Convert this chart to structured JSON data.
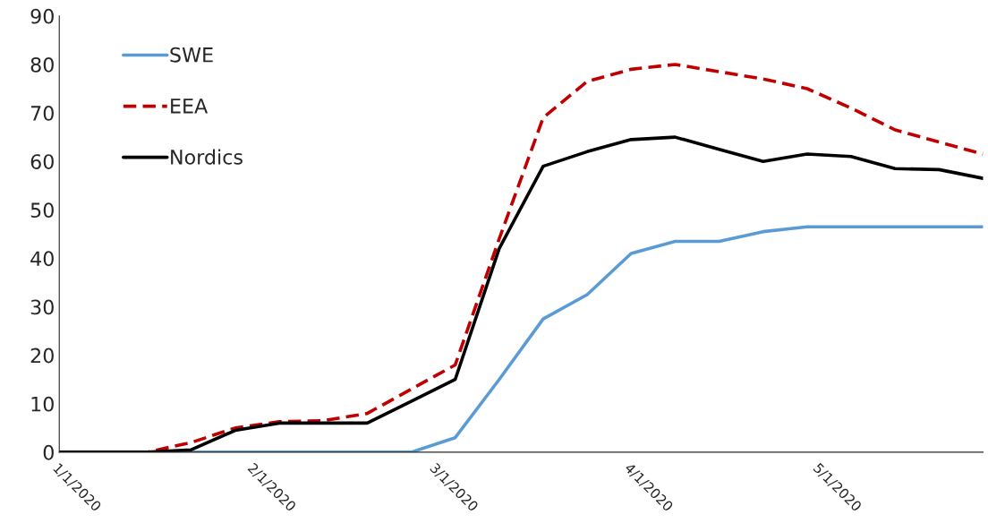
{
  "chart_data": {
    "type": "line",
    "x": [
      "2020-01-01",
      "2020-01-08",
      "2020-01-15",
      "2020-01-22",
      "2020-01-29",
      "2020-02-05",
      "2020-02-12",
      "2020-02-19",
      "2020-02-26",
      "2020-03-04",
      "2020-03-11",
      "2020-03-18",
      "2020-03-25",
      "2020-04-01",
      "2020-04-08",
      "2020-04-15",
      "2020-04-22",
      "2020-04-29",
      "2020-05-06",
      "2020-05-13",
      "2020-05-20",
      "2020-05-27"
    ],
    "series": [
      {
        "name": "SWE",
        "color": "#5b9bd5",
        "line_style": "solid",
        "values": [
          null,
          null,
          0,
          0,
          0,
          0,
          0,
          0,
          0,
          3,
          15,
          27.5,
          32.5,
          41,
          43.5,
          43.5,
          45.5,
          46.5,
          46.5,
          46.5,
          46.5,
          46.5
        ]
      },
      {
        "name": "EEA",
        "color": "#c00000",
        "line_style": "dashed",
        "values": [
          0,
          0,
          0,
          2,
          5,
          6.3,
          6.5,
          8,
          13,
          18,
          44,
          69,
          76.5,
          79,
          80,
          78.5,
          77,
          75,
          71,
          66.5,
          64,
          61.5
        ]
      },
      {
        "name": "Nordics",
        "color": "#000000",
        "line_style": "solid",
        "values": [
          0,
          0,
          0,
          0.5,
          4.5,
          6,
          6,
          6,
          10.5,
          15,
          42,
          59,
          62,
          64.5,
          65,
          62.5,
          60,
          61.5,
          61,
          58.5,
          58.3,
          56.5
        ]
      }
    ],
    "xlim": [
      "2020-01-01",
      "2020-05-27"
    ],
    "xticks": [
      {
        "value": "2020-01-01",
        "label": "1/1/2020"
      },
      {
        "value": "2020-02-01",
        "label": "2/1/2020"
      },
      {
        "value": "2020-03-01",
        "label": "3/1/2020"
      },
      {
        "value": "2020-04-01",
        "label": "4/1/2020"
      },
      {
        "value": "2020-05-01",
        "label": "5/1/2020"
      }
    ],
    "ylim": [
      0,
      90
    ],
    "yticks": [
      0,
      10,
      20,
      30,
      40,
      50,
      60,
      70,
      80,
      90
    ],
    "grid": false,
    "legend": "top left"
  }
}
